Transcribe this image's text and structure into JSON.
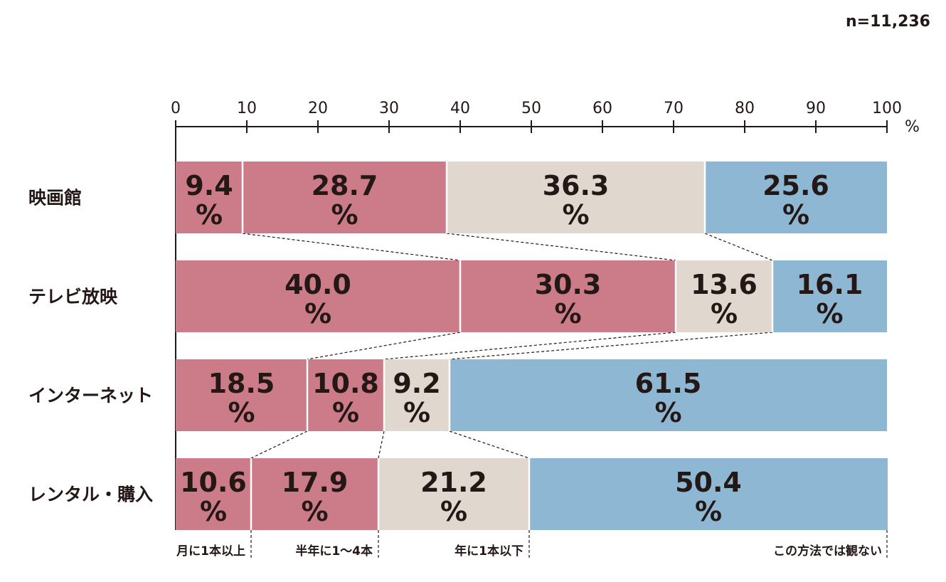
{
  "sample_size": "n=11,236",
  "chart_data": {
    "type": "bar",
    "orientation": "horizontal",
    "stacked": true,
    "title": "",
    "xlabel": "%",
    "xlim": [
      0,
      100
    ],
    "x_ticks": [
      "0",
      "10",
      "20",
      "30",
      "40",
      "50",
      "60",
      "70",
      "80",
      "90",
      "100"
    ],
    "categories": [
      "映画館",
      "テレビ放映",
      "インターネット",
      "レンタル・購入"
    ],
    "series": [
      {
        "name": "月に1本以上",
        "color": "#cc7b89",
        "values": [
          9.4,
          40.0,
          18.5,
          10.6
        ]
      },
      {
        "name": "半年に1〜4本",
        "color": "#cc7b89",
        "values": [
          28.7,
          30.3,
          10.8,
          17.9
        ]
      },
      {
        "name": "年に1本以下",
        "color": "#e0d8ce",
        "values": [
          36.3,
          13.6,
          9.2,
          21.2
        ]
      },
      {
        "name": "この方法では観ない",
        "color": "#8db7d3",
        "values": [
          25.6,
          16.1,
          61.5,
          50.4
        ]
      }
    ],
    "value_labels": [
      [
        "9.4",
        "28.7",
        "36.3",
        "25.6"
      ],
      [
        "40.0",
        "30.3",
        "13.6",
        "16.1"
      ],
      [
        "18.5",
        "10.8",
        "9.2",
        "61.5"
      ],
      [
        "10.6",
        "17.9",
        "21.2",
        "50.4"
      ]
    ],
    "value_unit": "%",
    "legend_position": "bottom",
    "grid": false,
    "connector_lines": true
  }
}
